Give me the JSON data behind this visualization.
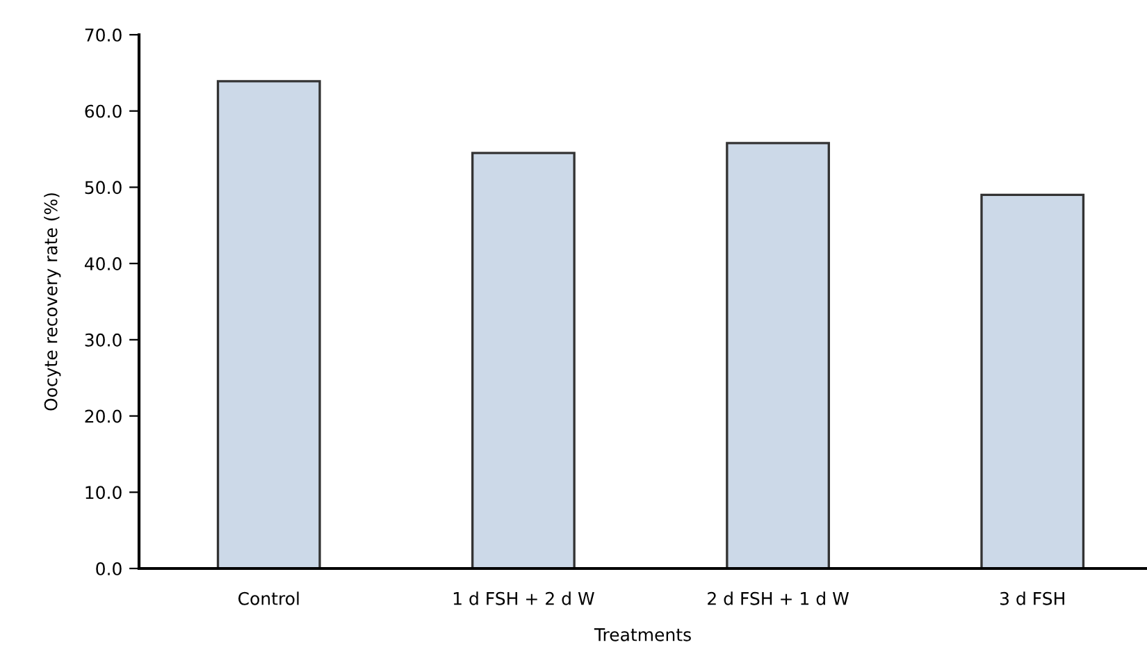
{
  "chart_data": {
    "type": "bar",
    "xlabel": "Treatments",
    "ylabel": "Oocyte recovery rate (%)",
    "categories": [
      "Control",
      "1 d FSH + 2 d W",
      "2 d FSH + 1 d W",
      "3 d FSH"
    ],
    "values": [
      63.9,
      54.5,
      55.8,
      49.0
    ],
    "color": "#ccd9e8",
    "ylim": [
      0,
      70
    ],
    "yticks": [
      {
        "value": 0,
        "label": "0.0"
      },
      {
        "value": 10,
        "label": "10.0"
      },
      {
        "value": 20,
        "label": "20.0"
      },
      {
        "value": 30,
        "label": "30.0"
      },
      {
        "value": 40,
        "label": "40.0"
      },
      {
        "value": 50,
        "label": "50.0"
      },
      {
        "value": 60,
        "label": "60.0"
      },
      {
        "value": 70,
        "label": "70.0"
      }
    ],
    "grid": false,
    "legend": false
  }
}
